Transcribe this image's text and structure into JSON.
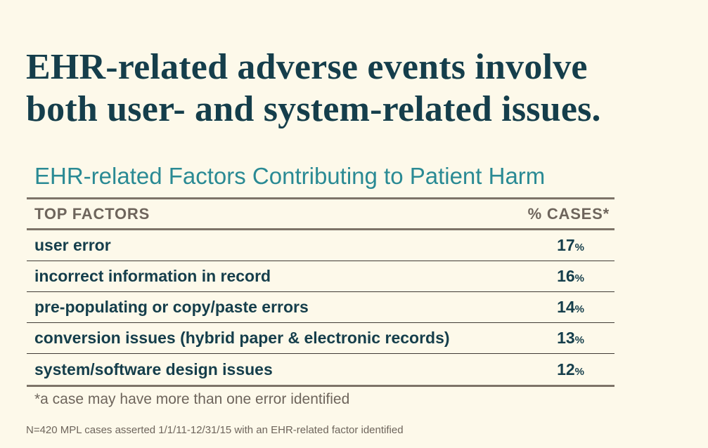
{
  "headline": {
    "line1": "EHR-related adverse events involve",
    "line2": "both user- and system-related issues."
  },
  "colors": {
    "background": "#fdf9ea",
    "headline": "#153e4b",
    "subtitle": "#2a8a94",
    "table_header": "#6e655c",
    "row_text": "#153e4b",
    "rule": "#7d7368"
  },
  "chart_data": {
    "type": "table",
    "title": "EHR-related Factors Contributing to Patient Harm",
    "columns": [
      "TOP FACTORS",
      "% CASES*"
    ],
    "rows": [
      {
        "factor": "user error",
        "value": 17,
        "unit": "%"
      },
      {
        "factor": "incorrect information in record",
        "value": 16,
        "unit": "%"
      },
      {
        "factor": "pre-populating or copy/paste errors",
        "value": 14,
        "unit": "%"
      },
      {
        "factor": "conversion issues (hybrid paper & electronic records)",
        "value": 13,
        "unit": "%"
      },
      {
        "factor": "system/software design issues",
        "value": 12,
        "unit": "%"
      }
    ],
    "footnote": "*a case may have more than one error identified",
    "source": "N=420 MPL cases asserted 1/1/11-12/31/15 with an EHR-related factor identified"
  }
}
